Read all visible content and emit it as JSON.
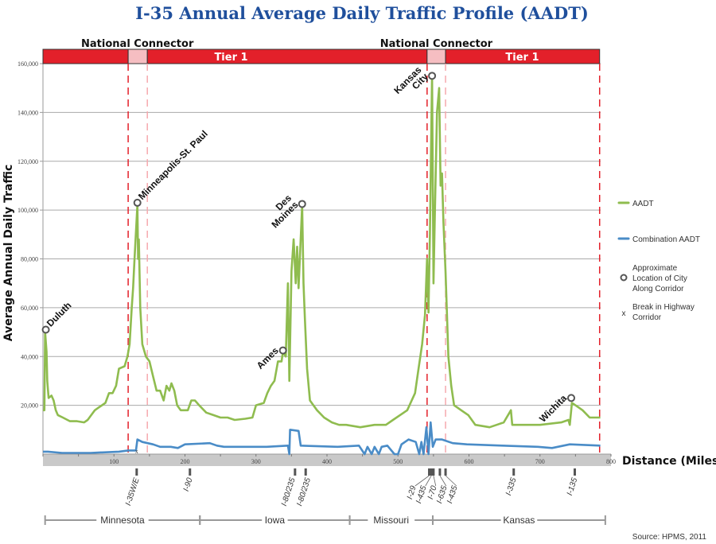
{
  "chart_data": {
    "type": "line",
    "title": "I-35 Annual Average Daily Traffic Profile (AADT)",
    "xlabel": "Distance (Miles)",
    "ylabel": "Average Annual Daily Traffic",
    "xlim": [
      0,
      800
    ],
    "ylim": [
      0,
      160000
    ],
    "grid": true,
    "xticks": [
      {
        "v": 100,
        "label": "100"
      },
      {
        "v": 200,
        "label": "200"
      },
      {
        "v": 300,
        "label": "300"
      },
      {
        "v": 400,
        "label": "400"
      },
      {
        "v": 500,
        "label": "500"
      },
      {
        "v": 600,
        "label": "600"
      },
      {
        "v": 700,
        "label": "700"
      },
      {
        "v": 800,
        "label": "800"
      }
    ],
    "yticks": [
      {
        "v": 20000,
        "label": "20,000"
      },
      {
        "v": 40000,
        "label": "40,000"
      },
      {
        "v": 60000,
        "label": "60,000"
      },
      {
        "v": 80000,
        "label": "80,000"
      },
      {
        "v": 100000,
        "label": "100,000"
      },
      {
        "v": 120000,
        "label": "120,000"
      },
      {
        "v": 140000,
        "label": "140,000"
      },
      {
        "v": 160000,
        "label": "160,000"
      }
    ],
    "series": [
      {
        "name": "AADT",
        "color": "#8fbc4f",
        "points": [
          [
            0,
            18000
          ],
          [
            2,
            18000
          ],
          [
            3,
            50000
          ],
          [
            5,
            42000
          ],
          [
            6,
            30000
          ],
          [
            8,
            23000
          ],
          [
            12,
            24000
          ],
          [
            15,
            22000
          ],
          [
            18,
            18000
          ],
          [
            21,
            16000
          ],
          [
            28,
            15000
          ],
          [
            38,
            13500
          ],
          [
            48,
            13500
          ],
          [
            58,
            13000
          ],
          [
            63,
            14000
          ],
          [
            68,
            16000
          ],
          [
            73,
            18000
          ],
          [
            78,
            19000
          ],
          [
            88,
            21000
          ],
          [
            93,
            25000
          ],
          [
            98,
            25000
          ],
          [
            103,
            28000
          ],
          [
            107,
            35000
          ],
          [
            115,
            36000
          ],
          [
            119,
            40000
          ],
          [
            122,
            45000
          ],
          [
            125,
            60000
          ],
          [
            127,
            68000
          ],
          [
            129,
            80000
          ],
          [
            133,
            102000
          ],
          [
            134,
            80000
          ],
          [
            135,
            88000
          ],
          [
            137,
            60000
          ],
          [
            140,
            45000
          ],
          [
            145,
            40000
          ],
          [
            150,
            38000
          ],
          [
            155,
            32000
          ],
          [
            160,
            26000
          ],
          [
            165,
            26000
          ],
          [
            170,
            22000
          ],
          [
            174,
            28000
          ],
          [
            178,
            26000
          ],
          [
            181,
            29000
          ],
          [
            185,
            26000
          ],
          [
            189,
            20000
          ],
          [
            194,
            18000
          ],
          [
            204,
            18000
          ],
          [
            209,
            22000
          ],
          [
            214,
            22000
          ],
          [
            220,
            20000
          ],
          [
            230,
            17000
          ],
          [
            240,
            16000
          ],
          [
            250,
            15000
          ],
          [
            260,
            15000
          ],
          [
            270,
            14000
          ],
          [
            285,
            14500
          ],
          [
            295,
            15000
          ],
          [
            300,
            20000
          ],
          [
            311,
            21000
          ],
          [
            316,
            25000
          ],
          [
            321,
            28000
          ],
          [
            326,
            30000
          ],
          [
            331,
            38000
          ],
          [
            336,
            38000
          ],
          [
            338,
            42000
          ],
          [
            342,
            40000
          ],
          [
            345,
            70000
          ],
          [
            347,
            30000
          ],
          [
            350,
            75000
          ],
          [
            353,
            88000
          ],
          [
            356,
            70000
          ],
          [
            358,
            85000
          ],
          [
            360,
            68000
          ],
          [
            365,
            102000
          ],
          [
            367,
            70000
          ],
          [
            369,
            55000
          ],
          [
            372,
            35000
          ],
          [
            376,
            22000
          ],
          [
            381,
            20000
          ],
          [
            386,
            18000
          ],
          [
            396,
            15000
          ],
          [
            407,
            13000
          ],
          [
            417,
            12000
          ],
          [
            427,
            12000
          ],
          [
            447,
            11000
          ],
          [
            467,
            12000
          ],
          [
            483,
            12000
          ],
          [
            493,
            14000
          ],
          [
            503,
            16000
          ],
          [
            513,
            18000
          ],
          [
            524,
            25000
          ],
          [
            529,
            35000
          ],
          [
            534,
            45000
          ],
          [
            538,
            57000
          ],
          [
            541,
            80000
          ],
          [
            543,
            58000
          ],
          [
            545,
            90000
          ],
          [
            548,
            155000
          ],
          [
            550,
            70000
          ],
          [
            552,
            100000
          ],
          [
            555,
            140000
          ],
          [
            558,
            150000
          ],
          [
            560,
            110000
          ],
          [
            562,
            115000
          ],
          [
            564,
            95000
          ],
          [
            567,
            75000
          ],
          [
            571,
            40000
          ],
          [
            575,
            28000
          ],
          [
            579,
            20000
          ],
          [
            589,
            18000
          ],
          [
            599,
            16000
          ],
          [
            609,
            12000
          ],
          [
            619,
            11500
          ],
          [
            629,
            11000
          ],
          [
            639,
            12000
          ],
          [
            649,
            13000
          ],
          [
            659,
            18000
          ],
          [
            661,
            12000
          ],
          [
            700,
            12000
          ],
          [
            730,
            13000
          ],
          [
            740,
            14000
          ],
          [
            742,
            12000
          ],
          [
            745,
            21000
          ],
          [
            750,
            20000
          ],
          [
            760,
            18000
          ],
          [
            770,
            15000
          ],
          [
            785,
            15000
          ]
        ]
      },
      {
        "name": "Combination AADT",
        "color": "#4a8cc7",
        "points": [
          [
            0,
            1000
          ],
          [
            7,
            1000
          ],
          [
            27,
            500
          ],
          [
            67,
            500
          ],
          [
            107,
            1000
          ],
          [
            120,
            1500
          ],
          [
            131,
            1500
          ],
          [
            133,
            6000
          ],
          [
            140,
            5000
          ],
          [
            155,
            4000
          ],
          [
            165,
            3000
          ],
          [
            180,
            3000
          ],
          [
            190,
            2500
          ],
          [
            200,
            4000
          ],
          [
            235,
            4500
          ],
          [
            245,
            3500
          ],
          [
            255,
            3000
          ],
          [
            315,
            3000
          ],
          [
            345,
            3500
          ],
          [
            347,
            0
          ],
          [
            348,
            10000
          ],
          [
            360,
            9500
          ],
          [
            363,
            3500
          ],
          [
            415,
            3000
          ],
          [
            445,
            3500
          ],
          [
            453,
            0
          ],
          [
            457,
            3000
          ],
          [
            463,
            0
          ],
          [
            467,
            3000
          ],
          [
            473,
            0
          ],
          [
            477,
            3000
          ],
          [
            485,
            3500
          ],
          [
            495,
            0
          ],
          [
            500,
            0
          ],
          [
            505,
            4000
          ],
          [
            515,
            6000
          ],
          [
            525,
            5000
          ],
          [
            530,
            0
          ],
          [
            533,
            5000
          ],
          [
            536,
            0
          ],
          [
            540,
            11000
          ],
          [
            543,
            0
          ],
          [
            546,
            13000
          ],
          [
            549,
            3000
          ],
          [
            553,
            6000
          ],
          [
            562,
            6000
          ],
          [
            577,
            4500
          ],
          [
            597,
            4000
          ],
          [
            647,
            3500
          ],
          [
            697,
            3000
          ],
          [
            717,
            2500
          ],
          [
            742,
            4000
          ],
          [
            785,
            3500
          ]
        ]
      }
    ],
    "cities": [
      {
        "name": "Duluth",
        "lines": [
          "Duluth"
        ],
        "x": 4,
        "y": 51000,
        "side": "right"
      },
      {
        "name": "Minneapolis-St. Paul",
        "lines": [
          "Minneapolis-St. Paul"
        ],
        "x": 133,
        "y": 103000,
        "side": "right"
      },
      {
        "name": "Ames",
        "lines": [
          "Ames"
        ],
        "x": 338,
        "y": 42500,
        "side": "left"
      },
      {
        "name": "Des Moines",
        "lines": [
          "Des",
          "Moines"
        ],
        "x": 365,
        "y": 102500,
        "side": "left"
      },
      {
        "name": "Kansas City",
        "lines": [
          "Kansas",
          "City"
        ],
        "x": 548,
        "y": 155000,
        "side": "left"
      },
      {
        "name": "Wichita",
        "lines": [
          "Wichita"
        ],
        "x": 744,
        "y": 23000,
        "side": "left"
      }
    ],
    "breaks": [
      {
        "x": 132,
        "label": "x"
      }
    ],
    "corridor_segments": [
      {
        "from": 0,
        "to": 120,
        "type": "Tier 1",
        "color": "#e3202a",
        "label": ""
      },
      {
        "from": 120,
        "to": 147,
        "type": "National Connector",
        "color": "#f6bec2",
        "label": ""
      },
      {
        "from": 147,
        "to": 541,
        "type": "Tier 1",
        "color": "#e3202a",
        "label": "Tier 1"
      },
      {
        "from": 541,
        "to": 567,
        "type": "National Connector",
        "color": "#f6bec2",
        "label": ""
      },
      {
        "from": 567,
        "to": 784,
        "type": "Tier 1",
        "color": "#e3202a",
        "label": "Tier 1"
      }
    ],
    "connector_labels": [
      {
        "x": 133,
        "label": "National Connector"
      },
      {
        "x": 554,
        "label": "National Connector"
      }
    ],
    "tier_labels": [
      {
        "x": 265,
        "label": "Tier 1"
      },
      {
        "x": 675,
        "label": "Tier 1"
      }
    ],
    "boundary_lines": [
      {
        "x": 120,
        "color": "#e3202a"
      },
      {
        "x": 147,
        "color": "#f6a9ae"
      },
      {
        "x": 541,
        "color": "#e3202a"
      },
      {
        "x": 567,
        "color": "#f6a9ae"
      },
      {
        "x": 784,
        "color": "#e3202a"
      }
    ],
    "interchanges": [
      {
        "x": 132,
        "label": "I-35W/E"
      },
      {
        "x": 207,
        "label": "I-90"
      },
      {
        "x": 355,
        "label": "I-80/235"
      },
      {
        "x": 370,
        "label": "I-80/235"
      },
      {
        "x": 544,
        "label": "I-29"
      },
      {
        "x": 547,
        "label": "I-435"
      },
      {
        "x": 550,
        "label": "I-70"
      },
      {
        "x": 559,
        "label": "I-635"
      },
      {
        "x": 567,
        "label": "I-435"
      },
      {
        "x": 663,
        "label": "I-335"
      },
      {
        "x": 749,
        "label": "I-135"
      }
    ],
    "states": [
      {
        "name": "Minnesota",
        "from": 3,
        "to": 221
      },
      {
        "name": "Iowa",
        "from": 221,
        "to": 432
      },
      {
        "name": "Missouri",
        "from": 432,
        "to": 549
      },
      {
        "name": "Kansas",
        "from": 549,
        "to": 792
      }
    ],
    "legend": {
      "placement": "right",
      "aadt": "AADT",
      "combination": "Combination AADT",
      "city": [
        "Approximate",
        "Location of City",
        "Along Corridor"
      ],
      "break_symbol": "x",
      "break": [
        "Break in Highway",
        "Corridor"
      ]
    },
    "source": "Source: HPMS, 2011"
  }
}
